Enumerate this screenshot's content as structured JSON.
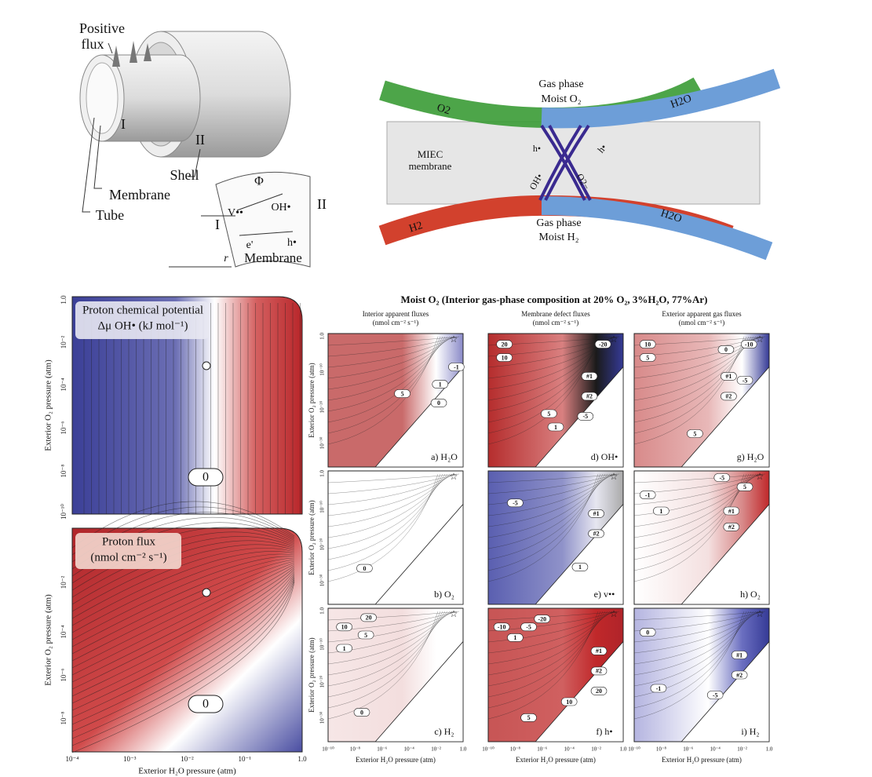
{
  "tube_diagram": {
    "positive_flux": [
      "Positive",
      "flux"
    ],
    "tube_I": "I",
    "shell_II": "II",
    "shell": "Shell",
    "membrane": "Membrane",
    "tube": "Tube",
    "inset": {
      "phi": "Φ",
      "vacancy": "V••",
      "hydroxide": "OH•",
      "electron": "e'",
      "hole": "h•",
      "side_I": "I",
      "side_II": "II",
      "r": "r",
      "membrane": "Membrane"
    }
  },
  "membrane_diagram": {
    "top_gas": [
      "Gas phase",
      "Moist O₂"
    ],
    "o2": "O2",
    "h2o_top": "H2O",
    "miec": [
      "MIEC",
      "membrane"
    ],
    "h_left": "h•",
    "h_right": "h•",
    "oh": "OH•",
    "o2minus": "O2−",
    "h2": "H2",
    "h2o_bottom": "H2O",
    "bottom_gas": [
      "Gas phase",
      "Moist H₂"
    ]
  },
  "left_plots": {
    "y_label": "Exterior O₂ pressure (atm)",
    "x_label": "Exterior H₂O pressure (atm)",
    "x_ticks": [
      "10⁻⁴",
      "10⁻³",
      "10⁻²",
      "10⁻¹",
      "1.0"
    ],
    "panels": [
      {
        "title": [
          "Proton chemical potential",
          "Δμ OH• (kJ mol⁻¹)"
        ],
        "contour_label": "0",
        "y_ticks": [
          "1.0",
          "10⁻²",
          "10⁻⁴",
          "10⁻⁶",
          "10⁻⁸",
          "10⁻¹⁰"
        ]
      },
      {
        "title": [
          "Proton flux",
          "(nmol cm⁻² s⁻¹)"
        ],
        "contour_label": "0",
        "y_ticks": [
          "10⁻²",
          "10⁻⁴",
          "10⁻⁶",
          "10⁻⁸"
        ]
      }
    ]
  },
  "grid_figure": {
    "title": "Moist O₂ (Interior gas-phase composition at 20% O₂, 3%H₂O, 77%Ar)",
    "columns": [
      [
        "Interior apparent fluxes",
        "(nmol cm⁻² s⁻¹)"
      ],
      [
        "Membrane defect fluxes",
        "(nmol cm⁻² s⁻¹)"
      ],
      [
        "Exterior apparent gas fluxes",
        "(nmol cm⁻² s⁻¹)"
      ]
    ],
    "y_label": "Exterior O₂ pressure (atm)",
    "x_label": "Exterior H₂O pressure (atm)",
    "y_ticks": [
      "1.0",
      "10⁻¹⁰",
      "10⁻²⁰",
      "10⁻³⁰"
    ],
    "x_ticks": [
      "10⁻¹⁰",
      "10⁻⁸",
      "10⁻⁶",
      "10⁻⁴",
      "10⁻²",
      "1.0"
    ],
    "panels": [
      {
        "label": "a) H₂O",
        "contours": [
          "5",
          "1",
          "0",
          "-1"
        ]
      },
      {
        "label": "d) OH•",
        "contours": [
          "20",
          "10",
          "5",
          "1",
          "-5",
          "-20",
          "#1",
          "#2"
        ]
      },
      {
        "label": "g) H₂O",
        "contours": [
          "10",
          "5",
          "0",
          "-10",
          "-5",
          "#1",
          "#2",
          "5"
        ]
      },
      {
        "label": "b) O₂",
        "contours": [
          "0"
        ]
      },
      {
        "label": "e) v••",
        "contours": [
          "-5",
          "#1",
          "#2",
          "1"
        ]
      },
      {
        "label": "h) O₂",
        "contours": [
          "-5",
          "-1",
          "5",
          "1",
          "#1",
          "#2"
        ]
      },
      {
        "label": "c) H₂",
        "contours": [
          "20",
          "10",
          "5",
          "1",
          "0"
        ]
      },
      {
        "label": "f) h•",
        "contours": [
          "-20",
          "-10",
          "-5",
          "1",
          "#1",
          "#2",
          "10",
          "20",
          "5"
        ]
      },
      {
        "label": "i) H₂",
        "contours": [
          "0",
          "-1",
          "#1",
          "#2",
          "-5"
        ]
      }
    ]
  }
}
